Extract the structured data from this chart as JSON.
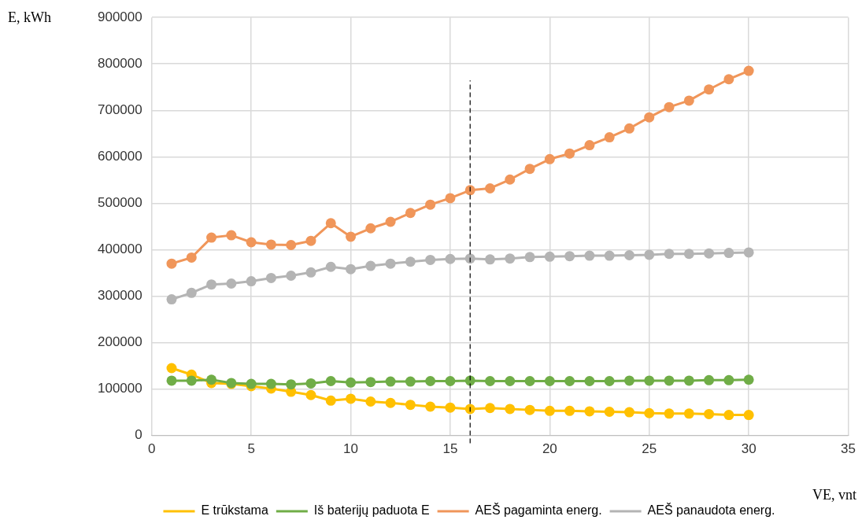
{
  "chart_data": {
    "type": "line",
    "xlabel": "VE, vnt",
    "ylabel": "E, kWh",
    "x": [
      1,
      2,
      3,
      4,
      5,
      6,
      7,
      8,
      9,
      10,
      11,
      12,
      13,
      14,
      15,
      16,
      17,
      18,
      19,
      20,
      21,
      22,
      23,
      24,
      25,
      26,
      27,
      28,
      29,
      30
    ],
    "series": [
      {
        "name": "E trūkstama",
        "color": "#ffc000",
        "values": [
          145000,
          131000,
          113000,
          111000,
          106000,
          101000,
          94000,
          87000,
          75000,
          79000,
          73000,
          70000,
          66000,
          62000,
          60000,
          57000,
          59000,
          57000,
          55000,
          53000,
          53000,
          52000,
          51000,
          50000,
          48000,
          47000,
          47000,
          46000,
          44000,
          44000
        ]
      },
      {
        "name": "Iš baterijų paduota E",
        "color": "#70ad47",
        "values": [
          118000,
          118000,
          120000,
          113000,
          111000,
          111000,
          110000,
          112000,
          117000,
          114000,
          115000,
          116000,
          116000,
          117000,
          117000,
          118000,
          117000,
          117000,
          117000,
          117000,
          117000,
          117000,
          117000,
          118000,
          118000,
          118000,
          118000,
          119000,
          119000,
          120000
        ]
      },
      {
        "name": "AEŠ pagaminta energ.",
        "color": "#f0965a",
        "values": [
          370000,
          383000,
          426000,
          431000,
          416000,
          411000,
          410000,
          419000,
          457000,
          428000,
          446000,
          460000,
          479000,
          497000,
          511000,
          528000,
          532000,
          551000,
          574000,
          595000,
          607000,
          625000,
          642000,
          661000,
          685000,
          707000,
          721000,
          745000,
          767000,
          785000
        ]
      },
      {
        "name": "AEŠ panaudota energ.",
        "color": "#b4b4b4",
        "values": [
          293000,
          307000,
          325000,
          327000,
          332000,
          339000,
          344000,
          351000,
          363000,
          358000,
          365000,
          370000,
          374000,
          378000,
          380000,
          381000,
          379000,
          381000,
          384000,
          385000,
          386000,
          387000,
          387000,
          388000,
          389000,
          391000,
          391000,
          392000,
          393000,
          394000
        ]
      }
    ],
    "xlim": [
      0,
      35
    ],
    "xticks": [
      0,
      5,
      10,
      15,
      20,
      25,
      30,
      35
    ],
    "ylim": [
      0,
      900000
    ],
    "yticks": [
      0,
      100000,
      200000,
      300000,
      400000,
      500000,
      600000,
      700000,
      800000,
      900000
    ],
    "ref_lines": [
      {
        "axis": "x",
        "value": 16,
        "color": "#000000",
        "line_style": "dashed"
      }
    ],
    "grid": true,
    "legend": "bottom",
    "marker": "circle",
    "line_style": "solid"
  }
}
